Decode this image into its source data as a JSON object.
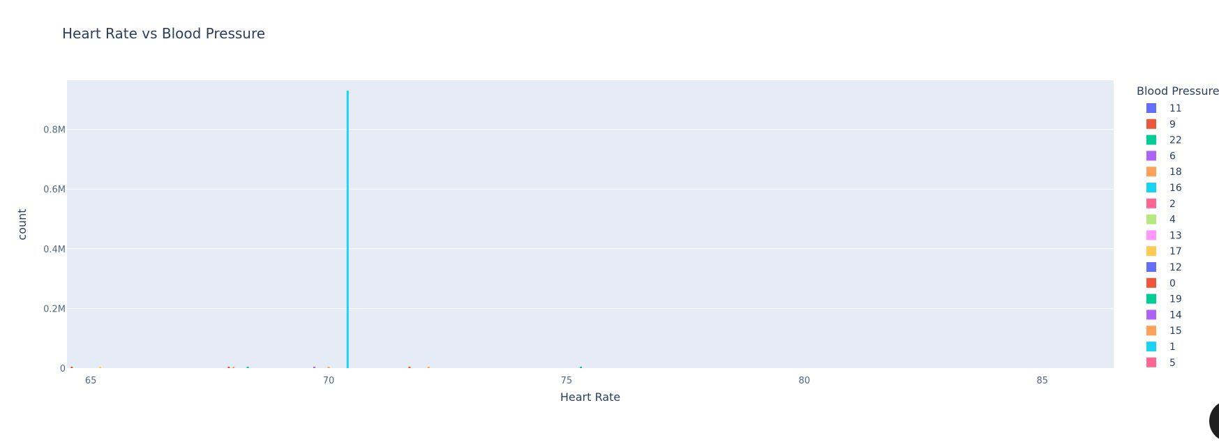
{
  "chart_data": {
    "type": "bar",
    "title": "Heart Rate vs Blood Pressure",
    "xlabel": "Heart Rate",
    "ylabel": "count",
    "xlim": [
      64.5,
      86.5
    ],
    "ylim": [
      0,
      965000
    ],
    "x_ticks": [
      {
        "value": 65,
        "label": "65"
      },
      {
        "value": 70,
        "label": "70"
      },
      {
        "value": 75,
        "label": "75"
      },
      {
        "value": 80,
        "label": "80"
      },
      {
        "value": 85,
        "label": "85"
      }
    ],
    "y_ticks": [
      {
        "value": 0,
        "label": "0"
      },
      {
        "value": 200000,
        "label": "0.2M"
      },
      {
        "value": 400000,
        "label": "0.4M"
      },
      {
        "value": 600000,
        "label": "0.6M"
      },
      {
        "value": 800000,
        "label": "0.8M"
      }
    ],
    "grid": true,
    "legend": {
      "title": "Blood Pressure",
      "placement": "right",
      "items": [
        {
          "name": "11",
          "color": "#636efa"
        },
        {
          "name": "9",
          "color": "#EF553B"
        },
        {
          "name": "22",
          "color": "#00cc96"
        },
        {
          "name": "6",
          "color": "#ab63fa"
        },
        {
          "name": "18",
          "color": "#FFA15A"
        },
        {
          "name": "16",
          "color": "#19d3f3"
        },
        {
          "name": "2",
          "color": "#FF6692"
        },
        {
          "name": "4",
          "color": "#B6E880"
        },
        {
          "name": "13",
          "color": "#FF97FF"
        },
        {
          "name": "17",
          "color": "#FECB52"
        },
        {
          "name": "12",
          "color": "#636efa"
        },
        {
          "name": "0",
          "color": "#EF553B"
        },
        {
          "name": "19",
          "color": "#00cc96"
        },
        {
          "name": "14",
          "color": "#ab63fa"
        },
        {
          "name": "15",
          "color": "#FFA15A"
        },
        {
          "name": "1",
          "color": "#19d3f3"
        },
        {
          "name": "5",
          "color": "#FF6692"
        }
      ]
    },
    "bars": [
      {
        "x": 70.4,
        "y": 930000,
        "color": "#19d3f3"
      },
      {
        "x": 64.6,
        "y": 3000,
        "color": "#EF553B"
      },
      {
        "x": 65.2,
        "y": 3000,
        "color": "#FECB52"
      },
      {
        "x": 67.9,
        "y": 3000,
        "color": "#EF553B"
      },
      {
        "x": 68.0,
        "y": 3000,
        "color": "#FFA15A"
      },
      {
        "x": 68.3,
        "y": 3000,
        "color": "#00cc96"
      },
      {
        "x": 69.7,
        "y": 3000,
        "color": "#ab63fa"
      },
      {
        "x": 70.0,
        "y": 3000,
        "color": "#FFA15A"
      },
      {
        "x": 71.7,
        "y": 3000,
        "color": "#EF553B"
      },
      {
        "x": 72.1,
        "y": 3000,
        "color": "#FFA15A"
      },
      {
        "x": 75.3,
        "y": 3000,
        "color": "#00cc96"
      }
    ],
    "colors": {
      "plot_bg": "#e5ecf6",
      "grid": "#ffffff",
      "text": "#2a3f5f",
      "tick_text": "#506784"
    }
  }
}
